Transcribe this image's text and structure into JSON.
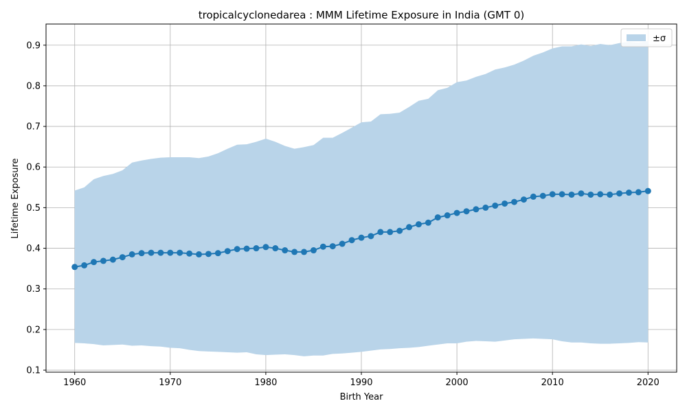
{
  "chart_data": {
    "type": "line",
    "title": "tropicalcyclonedarea : MMM Lifetime Exposure in India (GMT 0)",
    "xlabel": "Birth Year",
    "ylabel": "Lifetime Exposure",
    "xlim": [
      1957,
      2023
    ],
    "ylim": [
      0.095,
      0.952
    ],
    "xticks": [
      "1960",
      "1970",
      "1980",
      "1990",
      "2000",
      "2010",
      "2020"
    ],
    "yticks": [
      "0.1",
      "0.2",
      "0.3",
      "0.4",
      "0.5",
      "0.6",
      "0.7",
      "0.8",
      "0.9"
    ],
    "grid": true,
    "legend_position": "top-right",
    "legend_label": "±σ",
    "colors": {
      "line": "#1f77b4",
      "band": "#b9d4e9",
      "grid": "#b0b0b0"
    },
    "x": [
      1960,
      1961,
      1962,
      1963,
      1964,
      1965,
      1966,
      1967,
      1968,
      1969,
      1970,
      1971,
      1972,
      1973,
      1974,
      1975,
      1976,
      1977,
      1978,
      1979,
      1980,
      1981,
      1982,
      1983,
      1984,
      1985,
      1986,
      1987,
      1988,
      1989,
      1990,
      1991,
      1992,
      1993,
      1994,
      1995,
      1996,
      1997,
      1998,
      1999,
      2000,
      2001,
      2002,
      2003,
      2004,
      2005,
      2006,
      2007,
      2008,
      2009,
      2010,
      2011,
      2012,
      2013,
      2014,
      2015,
      2016,
      2017,
      2018,
      2019,
      2020
    ],
    "series": [
      {
        "values": [
          0.354,
          0.358,
          0.366,
          0.369,
          0.372,
          0.378,
          0.385,
          0.388,
          0.389,
          0.389,
          0.389,
          0.389,
          0.387,
          0.385,
          0.386,
          0.388,
          0.393,
          0.398,
          0.399,
          0.4,
          0.403,
          0.4,
          0.395,
          0.391,
          0.391,
          0.395,
          0.404,
          0.405,
          0.411,
          0.42,
          0.426,
          0.43,
          0.44,
          0.44,
          0.443,
          0.452,
          0.459,
          0.463,
          0.476,
          0.481,
          0.487,
          0.491,
          0.496,
          0.5,
          0.505,
          0.51,
          0.514,
          0.52,
          0.527,
          0.529,
          0.533,
          0.533,
          0.532,
          0.535,
          0.532,
          0.533,
          0.532,
          0.535,
          0.537,
          0.538,
          0.541
        ]
      }
    ],
    "band_upper": [
      0.542,
      0.55,
      0.57,
      0.578,
      0.583,
      0.592,
      0.611,
      0.616,
      0.62,
      0.623,
      0.624,
      0.624,
      0.624,
      0.622,
      0.626,
      0.634,
      0.645,
      0.655,
      0.656,
      0.662,
      0.67,
      0.662,
      0.652,
      0.645,
      0.649,
      0.654,
      0.672,
      0.672,
      0.684,
      0.697,
      0.71,
      0.712,
      0.73,
      0.731,
      0.734,
      0.748,
      0.763,
      0.768,
      0.789,
      0.795,
      0.809,
      0.813,
      0.822,
      0.829,
      0.84,
      0.845,
      0.852,
      0.862,
      0.874,
      0.882,
      0.892,
      0.897,
      0.897,
      0.902,
      0.898,
      0.903,
      0.9,
      0.905,
      0.908,
      0.906,
      0.91
    ],
    "band_lower": [
      0.167,
      0.166,
      0.164,
      0.161,
      0.162,
      0.163,
      0.16,
      0.161,
      0.159,
      0.158,
      0.155,
      0.154,
      0.15,
      0.147,
      0.146,
      0.145,
      0.144,
      0.143,
      0.144,
      0.139,
      0.137,
      0.138,
      0.139,
      0.137,
      0.134,
      0.136,
      0.136,
      0.14,
      0.141,
      0.143,
      0.145,
      0.148,
      0.151,
      0.152,
      0.154,
      0.155,
      0.157,
      0.16,
      0.163,
      0.166,
      0.166,
      0.17,
      0.172,
      0.171,
      0.17,
      0.173,
      0.176,
      0.177,
      0.178,
      0.177,
      0.176,
      0.171,
      0.168,
      0.168,
      0.166,
      0.165,
      0.165,
      0.166,
      0.167,
      0.169,
      0.168
    ]
  }
}
